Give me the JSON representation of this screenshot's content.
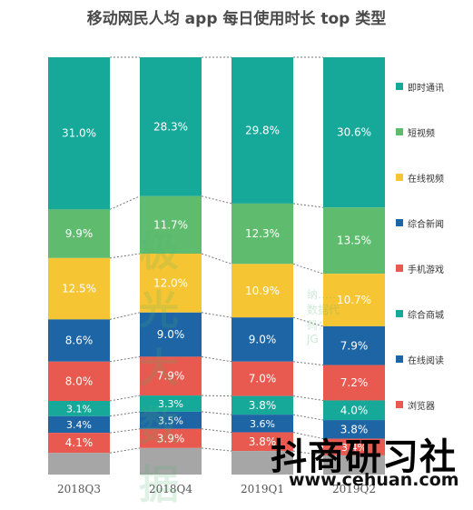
{
  "chart_data": {
    "type": "stacked-bar",
    "title": "移动网民人均 app 每日使用时长 top 类型",
    "categories": [
      "2018Q3",
      "2018Q4",
      "2019Q1",
      "2019Q2"
    ],
    "series": [
      {
        "name": "即时通讯",
        "color": "#16a99a",
        "values": [
          31.0,
          28.3,
          29.8,
          30.6
        ],
        "labels": [
          "31.0%",
          "28.3%",
          "29.8%",
          "30.6%"
        ]
      },
      {
        "name": "短视频",
        "color": "#5fbc6e",
        "values": [
          9.9,
          11.7,
          12.3,
          13.5
        ],
        "labels": [
          "9.9%",
          "11.7%",
          "12.3%",
          "13.5%"
        ]
      },
      {
        "name": "在线视频",
        "color": "#f6c533",
        "values": [
          12.5,
          12.0,
          10.9,
          10.7
        ],
        "labels": [
          "12.5%",
          "12.0%",
          "10.9%",
          "10.7%"
        ]
      },
      {
        "name": "综合新闻",
        "color": "#1d65a5",
        "values": [
          8.6,
          9.0,
          9.0,
          7.9
        ],
        "labels": [
          "8.6%",
          "9.0%",
          "9.0%",
          "7.9%"
        ]
      },
      {
        "name": "手机游戏",
        "color": "#e8594f",
        "values": [
          8.0,
          7.9,
          7.0,
          7.2
        ],
        "labels": [
          "8.0%",
          "7.9%",
          "7.0%",
          "7.2%"
        ]
      },
      {
        "name": "综合商城",
        "color": "#16a99a",
        "values": [
          3.1,
          3.3,
          3.8,
          4.0
        ],
        "labels": [
          "3.1%",
          "3.3%",
          "3.8%",
          "4.0%"
        ]
      },
      {
        "name": "在线阅读",
        "color": "#1d65a5",
        "values": [
          3.4,
          3.5,
          3.6,
          3.8
        ],
        "labels": [
          "3.4%",
          "3.5%",
          "3.6%",
          "3.8%"
        ]
      },
      {
        "name": "浏览器",
        "color": "#e8594f",
        "values": [
          4.1,
          3.9,
          3.8,
          3.4
        ],
        "labels": [
          "4.1%",
          "3.9%",
          "3.8%",
          "3.4%"
        ]
      }
    ],
    "remainder_color": "#a6a6a6",
    "legend_position": "right",
    "grid": false
  },
  "watermarks": {
    "brand_cn": "抖商研习社",
    "url_prefix": "www.",
    "url_name": "cehuan",
    "url_suffix": ".com",
    "jg_text": "极光大数据",
    "jg_sub": "纳……数据代码：JG"
  }
}
